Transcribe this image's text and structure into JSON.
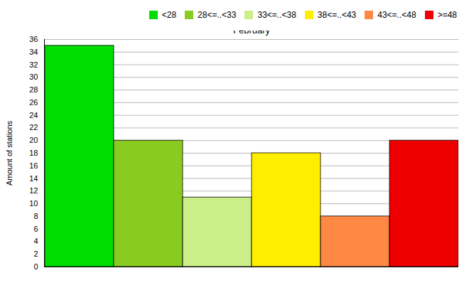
{
  "chart_data": {
    "type": "bar",
    "categories": [
      "February"
    ],
    "series": [
      {
        "name": "<28",
        "color": "#00dd00",
        "values": [
          35
        ]
      },
      {
        "name": "28<=..<33",
        "color": "#88cc22",
        "values": [
          20
        ]
      },
      {
        "name": "33<=..<38",
        "color": "#ccee88",
        "values": [
          11
        ]
      },
      {
        "name": "38<=..<43",
        "color": "#ffee00",
        "values": [
          18
        ]
      },
      {
        "name": "43<=..<48",
        "color": "#ff8844",
        "values": [
          8
        ]
      },
      {
        "name": ">=48",
        "color": "#ee0000",
        "values": [
          20
        ]
      }
    ],
    "ylabel": "Amount of stations",
    "ylim": [
      0,
      36
    ],
    "yticks": [
      0,
      2,
      4,
      6,
      8,
      10,
      12,
      14,
      16,
      18,
      20,
      22,
      24,
      26,
      28,
      30,
      32,
      34,
      36
    ],
    "grid": true,
    "legend": "upper right"
  }
}
